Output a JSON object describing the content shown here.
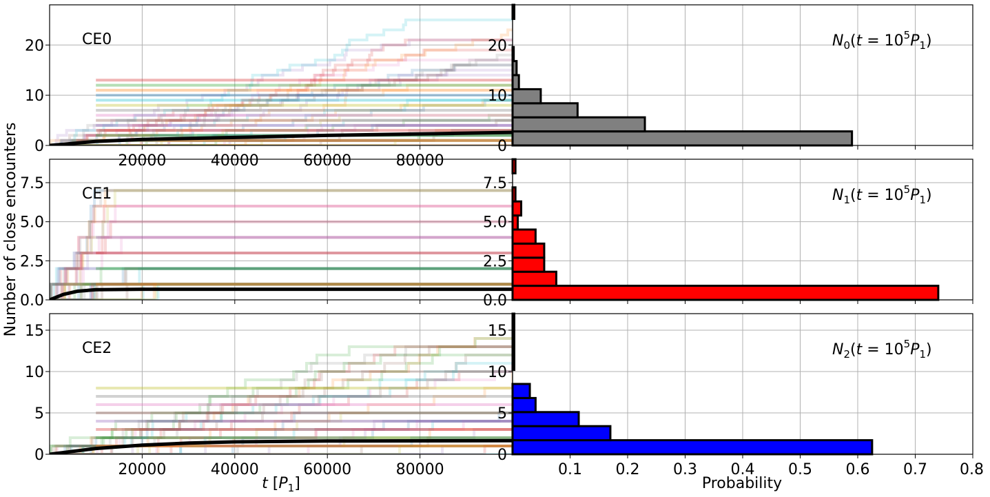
{
  "figure": {
    "ylabel": "Number of close encounters",
    "xlabel_left": "t [P1]",
    "xlabel_right": "Probability"
  },
  "chart_data": [
    {
      "type": "line",
      "panel": "CE0",
      "label": "CE0",
      "xlim": [
        0,
        100000
      ],
      "ylim": [
        0,
        28
      ],
      "yticks": [
        0,
        10,
        20
      ],
      "ytick_labels": [
        "0",
        "10",
        "20"
      ],
      "xticks": [
        20000,
        40000,
        60000,
        80000
      ],
      "xtick_labels": [
        "20000",
        "40000",
        "60000",
        "80000"
      ],
      "mean_line": {
        "x": [
          0,
          10000,
          20000,
          40000,
          60000,
          80000,
          100000
        ],
        "y": [
          0,
          0.8,
          1.2,
          1.6,
          2.0,
          2.3,
          2.6
        ]
      },
      "grid": true
    },
    {
      "type": "bar",
      "orientation": "horizontal",
      "panel": "N0",
      "label_parts": {
        "prefix": "N",
        "sub": "0",
        "mid": "(t = 10",
        "sup": "5",
        "p": "P",
        "psub": "1",
        "end": ")"
      },
      "xlim": [
        0,
        0.8
      ],
      "ylim": [
        0,
        28
      ],
      "yticks": [
        0,
        10,
        20
      ],
      "ytick_labels": [
        "0",
        "10",
        "20"
      ],
      "bin_width": 2.8,
      "color": "#808080",
      "values": [
        0.59,
        0.23,
        0.113,
        0.049,
        0.011,
        0.007,
        0.002,
        0,
        0,
        0.003
      ]
    },
    {
      "type": "line",
      "panel": "CE1",
      "label": "CE1",
      "xlim": [
        0,
        100000
      ],
      "ylim": [
        0,
        9
      ],
      "yticks": [
        0,
        2.5,
        5,
        7.5
      ],
      "ytick_labels": [
        "0.0",
        "2.5",
        "5.0",
        "7.5"
      ],
      "mean_line": {
        "x": [
          0,
          3000,
          6000,
          10000,
          20000,
          100000
        ],
        "y": [
          0,
          0.35,
          0.55,
          0.65,
          0.68,
          0.68
        ]
      },
      "grid": true
    },
    {
      "type": "bar",
      "orientation": "horizontal",
      "panel": "N1",
      "label_parts": {
        "prefix": "N",
        "sub": "1",
        "mid": "(t = 10",
        "sup": "5",
        "p": "P",
        "psub": "1",
        "end": ")"
      },
      "xlim": [
        0,
        0.8
      ],
      "ylim": [
        0,
        9
      ],
      "yticks": [
        0,
        2.5,
        5,
        7.5
      ],
      "ytick_labels": [
        "0.0",
        "2.5",
        "5.0",
        "7.5"
      ],
      "bin_width": 0.9,
      "color": "#ff0000",
      "values": [
        0.74,
        0.076,
        0.055,
        0.055,
        0.04,
        0.009,
        0.015,
        0.005,
        0,
        0.005
      ]
    },
    {
      "type": "line",
      "panel": "CE2",
      "label": "CE2",
      "xlim": [
        0,
        100000
      ],
      "ylim": [
        0,
        17
      ],
      "yticks": [
        0,
        5,
        10,
        15
      ],
      "ytick_labels": [
        "0",
        "5",
        "10",
        "15"
      ],
      "xticks": [
        20000,
        40000,
        60000,
        80000
      ],
      "xtick_labels": [
        "20000",
        "40000",
        "60000",
        "80000"
      ],
      "mean_line": {
        "x": [
          0,
          10000,
          20000,
          30000,
          40000,
          60000,
          100000
        ],
        "y": [
          0,
          0.7,
          1.1,
          1.35,
          1.5,
          1.6,
          1.65
        ]
      },
      "grid": true
    },
    {
      "type": "bar",
      "orientation": "horizontal",
      "panel": "N2",
      "label_parts": {
        "prefix": "N",
        "sub": "2",
        "mid": "(t = 10",
        "sup": "5",
        "p": "P",
        "psub": "1",
        "end": ")"
      },
      "xlim": [
        0,
        0.8
      ],
      "ylim": [
        0,
        17
      ],
      "yticks": [
        0,
        5,
        10,
        15
      ],
      "ytick_labels": [
        "0",
        "5",
        "10",
        "15"
      ],
      "xticks": [
        0.1,
        0.2,
        0.3,
        0.4,
        0.5,
        0.6,
        0.7,
        0.8
      ],
      "xtick_labels": [
        "0.1",
        "0.2",
        "0.3",
        "0.4",
        "0.5",
        "0.6",
        "0.7",
        "0.8"
      ],
      "bin_width": 1.7,
      "color": "#0000ff",
      "values": [
        0.625,
        0.17,
        0.115,
        0.04,
        0.03,
        0,
        0.003,
        0.003,
        0.003,
        0.003
      ]
    }
  ]
}
